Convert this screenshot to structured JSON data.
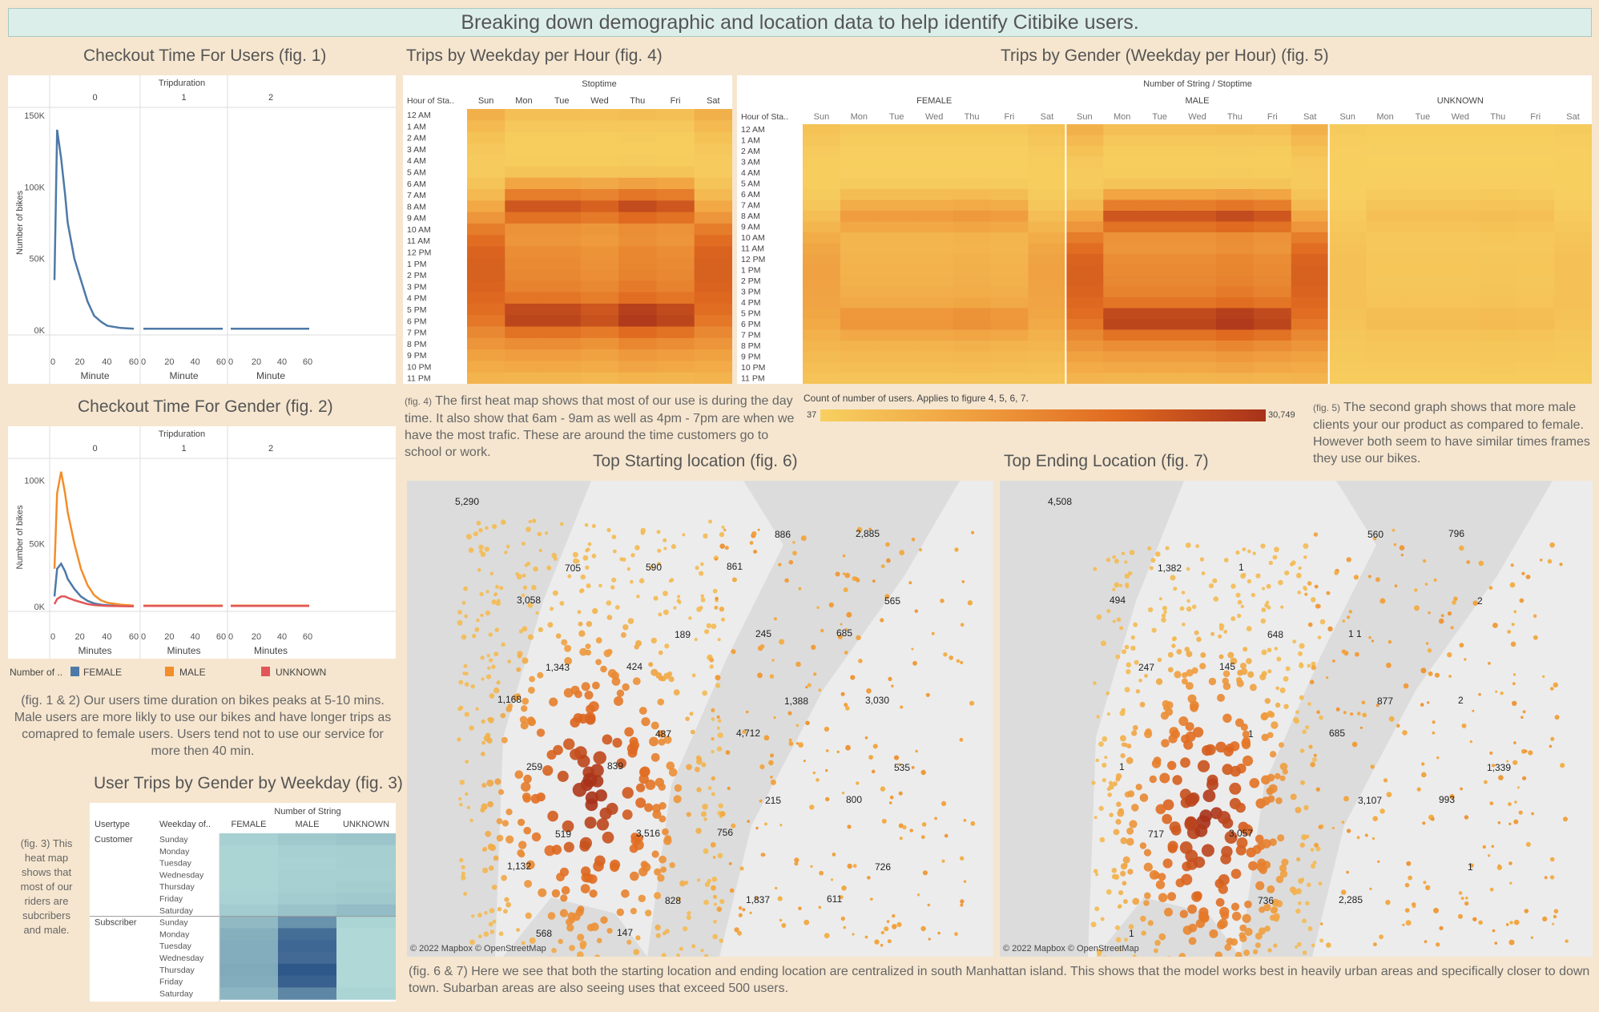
{
  "header": {
    "title": "Breaking down demographic and location data to help identify Citibike users."
  },
  "titles": {
    "fig1": "Checkout Time For Users (fig. 1)",
    "fig2": "Checkout Time For Gender (fig. 2)",
    "fig3": "User Trips by Gender by Weekday (fig. 3)",
    "fig4": "Trips by Weekday per Hour  (fig. 4)",
    "fig5": "Trips by Gender (Weekday per Hour)  (fig. 5)",
    "fig6": "Top Starting location  (fig. 6)",
    "fig7": "Top Ending Location (fig. 7)"
  },
  "notes": {
    "fig12": "(fig. 1 & 2) Our users time duration on bikes peaks at 5-10 mins. Male users are more likly to use our bikes and have longer trips as comapred to female users. Users tend not to use our service for more then 40 min.",
    "fig3": "(fig. 3) This heat map shows that most of our riders are subcribers and male.",
    "fig4_prefix": "(fig. 4)",
    "fig4": "The first heat map shows that most of our use is during the day time. It also show that 6am - 9am as well as 4pm - 7pm are when we have the most trafic. These are around the time customers go to school or work.",
    "fig5_prefix": "(fig. 5)",
    "fig5": "The second graph shows that more male clients your our product as compared to female. However both seem to have similar times frames they use our bikes.",
    "fig67": "(fig. 6 & 7) Here we see that both the starting location and ending location are centralized in south Manhattan island. This shows that the model works best in heavily urban areas and specifically closer to down town. Subarban areas are also seeing uses that exceed 500 users."
  },
  "colorscale": {
    "label": "Count of number of users. Applies to figure 4, 5, 6, 7.",
    "min": "37",
    "max": "30,749",
    "low": "#f7d060",
    "high": "#a8321a"
  },
  "fig1": {
    "header": "Tripduration",
    "panels": [
      "0",
      "1",
      "2"
    ],
    "ylabel": "Number of bikes",
    "xlabel": "Minute",
    "yticks": [
      "150K",
      "100K",
      "50K",
      "0K"
    ],
    "xticks": [
      "0",
      "20",
      "40",
      "60"
    ]
  },
  "fig2": {
    "header": "Tripduration",
    "panels": [
      "0",
      "1",
      "2"
    ],
    "ylabel": "Number of bikes",
    "xlabel": "Minutes",
    "yticks": [
      "100K",
      "50K",
      "0K"
    ],
    "xticks": [
      "0",
      "20",
      "40",
      "60"
    ],
    "legend_title": "Number of ..",
    "legend": [
      {
        "name": "FEMALE",
        "color": "#4e79a7"
      },
      {
        "name": "MALE",
        "color": "#f28e2b"
      },
      {
        "name": "UNKNOWN",
        "color": "#e15759"
      }
    ]
  },
  "fig3": {
    "header": "Number of String",
    "col_usertype": "Usertype",
    "col_weekday": "Weekday of..",
    "cols": [
      "FEMALE",
      "MALE",
      "UNKNOWN"
    ],
    "groups": [
      {
        "name": "Customer",
        "days": [
          "Sunday",
          "Monday",
          "Tuesday",
          "Wednesday",
          "Thursday",
          "Friday",
          "Saturday"
        ]
      },
      {
        "name": "Subscriber",
        "days": [
          "Sunday",
          "Monday",
          "Tuesday",
          "Wednesday",
          "Thursday",
          "Friday",
          "Saturday"
        ]
      }
    ]
  },
  "fig4": {
    "header": "Stoptime",
    "rowhead": "Hour of Sta..",
    "days": [
      "Sun",
      "Mon",
      "Tue",
      "Wed",
      "Thu",
      "Fri",
      "Sat"
    ],
    "hours": [
      "12 AM",
      "1 AM",
      "2 AM",
      "3 AM",
      "4 AM",
      "5 AM",
      "6 AM",
      "7 AM",
      "8 AM",
      "9 AM",
      "10 AM",
      "11 AM",
      "12 PM",
      "1 PM",
      "2 PM",
      "3 PM",
      "4 PM",
      "5 PM",
      "6 PM",
      "7 PM",
      "8 PM",
      "9 PM",
      "10 PM",
      "11 PM"
    ]
  },
  "fig5": {
    "header": "Number of String / Stoptime",
    "rowhead": "Hour of Sta..",
    "genders": [
      "FEMALE",
      "MALE",
      "UNKNOWN"
    ],
    "days": [
      "Sun",
      "Mon",
      "Tue",
      "Wed",
      "Thu",
      "Fri",
      "Sat"
    ],
    "hours": [
      "12 AM",
      "1 AM",
      "2 AM",
      "3 AM",
      "4 AM",
      "5 AM",
      "6 AM",
      "7 AM",
      "8 AM",
      "9 AM",
      "10 AM",
      "11 AM",
      "12 PM",
      "1 PM",
      "2 PM",
      "3 PM",
      "4 PM",
      "5 PM",
      "6 PM",
      "7 PM",
      "8 PM",
      "9 PM",
      "10 PM",
      "11 PM"
    ]
  },
  "maps": {
    "credit": "© 2022 Mapbox © OpenStreetMap",
    "start_labels": [
      "5,290",
      "705",
      "189",
      "1,388",
      "535",
      "519",
      "828",
      "886",
      "565",
      "1,343",
      "487",
      "215",
      "726",
      "568",
      "590",
      "245",
      "3,030",
      "259",
      "3,516",
      "1,837",
      "2,885",
      "3,058",
      "424",
      "4,712",
      "800",
      "1,132",
      "147",
      "861",
      "685",
      "1,168",
      "839",
      "756",
      "611"
    ],
    "end_labels": [
      "4,508",
      "1,382",
      "648",
      "877",
      "1,339",
      "717",
      "736",
      "560",
      "2",
      "247",
      "1",
      "3,107",
      "1",
      "1",
      "1",
      "1 1",
      "2",
      "1",
      "3,057",
      "2,285",
      "796",
      "494",
      "145",
      "685",
      "993"
    ]
  },
  "chart_data": [
    {
      "type": "line",
      "title": "Checkout Time For Users (fig. 1)",
      "xlabel": "Minute",
      "ylabel": "Number of bikes",
      "ylim": [
        0,
        150000
      ],
      "x": [
        0,
        2,
        5,
        8,
        10,
        15,
        20,
        25,
        30,
        35,
        40,
        50,
        60
      ],
      "series": [
        {
          "values": [
            35000,
            140000,
            120000,
            95000,
            75000,
            50000,
            35000,
            20000,
            10000,
            6000,
            3000,
            1500,
            1000
          ]
        }
      ]
    },
    {
      "type": "line",
      "title": "Checkout Time For Gender (fig. 2)",
      "xlabel": "Minutes",
      "ylabel": "Number of bikes",
      "ylim": [
        0,
        110000
      ],
      "x": [
        0,
        2,
        5,
        8,
        10,
        15,
        20,
        25,
        30,
        35,
        40,
        50,
        60
      ],
      "series": [
        {
          "name": "FEMALE",
          "values": [
            8000,
            30000,
            34000,
            28000,
            22000,
            14000,
            8000,
            4500,
            2500,
            1500,
            1000,
            500,
            300
          ]
        },
        {
          "name": "MALE",
          "values": [
            30000,
            90000,
            107000,
            90000,
            75000,
            50000,
            30000,
            17000,
            9000,
            5000,
            3000,
            1500,
            800
          ]
        },
        {
          "name": "UNKNOWN",
          "values": [
            2000,
            6000,
            8000,
            8000,
            7000,
            5000,
            3500,
            2000,
            1200,
            800,
            500,
            300,
            200
          ]
        }
      ]
    },
    {
      "type": "heatmap",
      "title": "User Trips by Gender by Weekday (fig. 3)",
      "rows": [
        "Customer Sunday",
        "Customer Monday",
        "Customer Tuesday",
        "Customer Wednesday",
        "Customer Thursday",
        "Customer Friday",
        "Customer Saturday",
        "Subscriber Sunday",
        "Subscriber Monday",
        "Subscriber Tuesday",
        "Subscriber Wednesday",
        "Subscriber Thursday",
        "Subscriber Friday",
        "Subscriber Saturday"
      ],
      "cols": [
        "FEMALE",
        "MALE",
        "UNKNOWN"
      ],
      "values": [
        [
          0.15,
          0.2,
          0.22
        ],
        [
          0.12,
          0.15,
          0.16
        ],
        [
          0.12,
          0.14,
          0.16
        ],
        [
          0.12,
          0.15,
          0.15
        ],
        [
          0.12,
          0.16,
          0.17
        ],
        [
          0.14,
          0.18,
          0.2
        ],
        [
          0.18,
          0.24,
          0.28
        ],
        [
          0.3,
          0.55,
          0.12
        ],
        [
          0.36,
          0.78,
          0.1
        ],
        [
          0.38,
          0.82,
          0.1
        ],
        [
          0.38,
          0.8,
          0.1
        ],
        [
          0.4,
          0.92,
          0.1
        ],
        [
          0.38,
          0.86,
          0.1
        ],
        [
          0.32,
          0.62,
          0.12
        ]
      ]
    },
    {
      "type": "heatmap",
      "title": "Trips by Weekday per Hour  (fig. 4)",
      "scale": [
        37,
        30749
      ],
      "rows": [
        "12 AM",
        "1 AM",
        "2 AM",
        "3 AM",
        "4 AM",
        "5 AM",
        "6 AM",
        "7 AM",
        "8 AM",
        "9 AM",
        "10 AM",
        "11 AM",
        "12 PM",
        "1 PM",
        "2 PM",
        "3 PM",
        "4 PM",
        "5 PM",
        "6 PM",
        "7 PM",
        "8 PM",
        "9 PM",
        "10 PM",
        "11 PM"
      ],
      "cols": [
        "Sun",
        "Mon",
        "Tue",
        "Wed",
        "Thu",
        "Fri",
        "Sat"
      ],
      "intensity_profile": {
        "weekday": [
          0.12,
          0.06,
          0.03,
          0.02,
          0.03,
          0.08,
          0.3,
          0.55,
          0.78,
          0.62,
          0.42,
          0.4,
          0.45,
          0.46,
          0.48,
          0.52,
          0.6,
          0.85,
          0.88,
          0.62,
          0.45,
          0.35,
          0.28,
          0.18
        ],
        "weekend": [
          0.22,
          0.16,
          0.1,
          0.06,
          0.04,
          0.04,
          0.08,
          0.16,
          0.28,
          0.4,
          0.55,
          0.65,
          0.7,
          0.72,
          0.72,
          0.7,
          0.68,
          0.65,
          0.58,
          0.48,
          0.4,
          0.32,
          0.26,
          0.2
        ]
      }
    },
    {
      "type": "heatmap",
      "title": "Trips by Gender (Weekday per Hour)  (fig. 5)",
      "scale": [
        37,
        30749
      ],
      "groups": [
        "FEMALE",
        "MALE",
        "UNKNOWN"
      ],
      "group_weights": [
        0.45,
        1.0,
        0.15
      ],
      "rows": [
        "12 AM",
        "1 AM",
        "2 AM",
        "3 AM",
        "4 AM",
        "5 AM",
        "6 AM",
        "7 AM",
        "8 AM",
        "9 AM",
        "10 AM",
        "11 AM",
        "12 PM",
        "1 PM",
        "2 PM",
        "3 PM",
        "4 PM",
        "5 PM",
        "6 PM",
        "7 PM",
        "8 PM",
        "9 PM",
        "10 PM",
        "11 PM"
      ],
      "cols": [
        "Sun",
        "Mon",
        "Tue",
        "Wed",
        "Thu",
        "Fri",
        "Sat"
      ]
    }
  ]
}
